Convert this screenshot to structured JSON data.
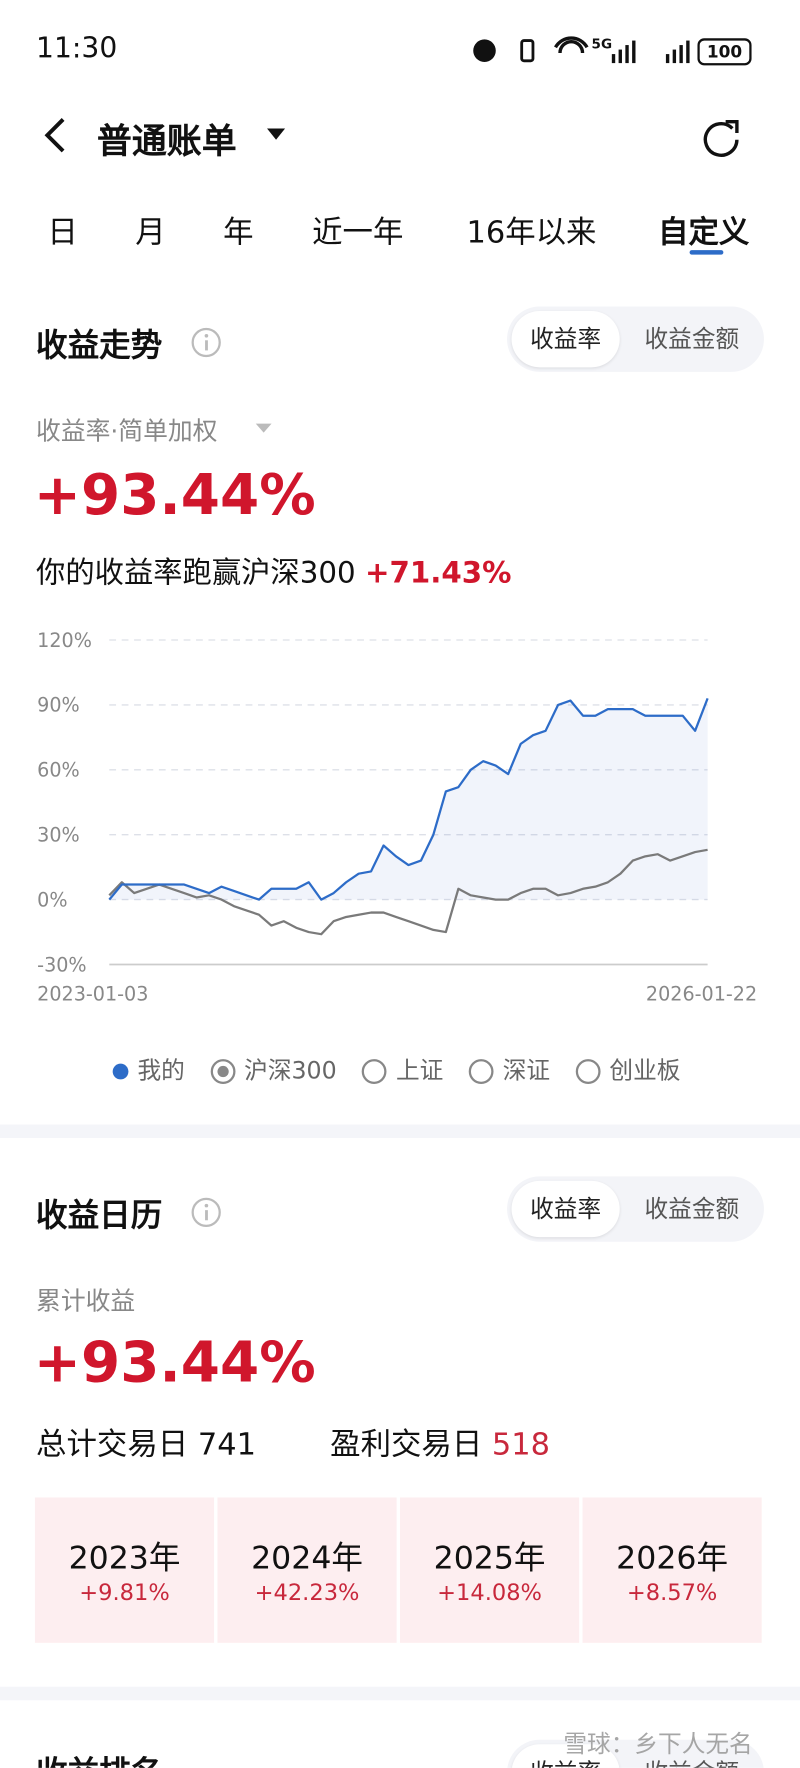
{
  "status_bar": {
    "time": "11:30",
    "network": "5G",
    "battery": "100"
  },
  "header": {
    "title": "普通账单"
  },
  "tabs": [
    "日",
    "月",
    "年",
    "近一年",
    "16年以来",
    "自定义"
  ],
  "trend": {
    "title": "收益走势",
    "toggle": [
      "收益率",
      "收益金额"
    ],
    "metric": "收益率·简单加权",
    "return": "+93.44%",
    "compare_text": "你的收益率跑赢沪深300",
    "compare_value": "+71.43%"
  },
  "chart_data": {
    "type": "line",
    "categories": [
      "2023-01-03",
      null,
      null,
      null,
      null,
      null,
      null,
      null,
      null,
      null,
      null,
      null,
      null,
      null,
      null,
      null,
      null,
      null,
      null,
      null,
      null,
      null,
      null,
      null,
      null,
      null,
      null,
      null,
      null,
      null,
      null,
      null,
      null,
      null,
      null,
      null,
      null,
      null,
      null,
      null,
      null,
      null,
      null,
      null,
      null,
      null,
      null,
      null,
      "2026-01-22"
    ],
    "series": [
      {
        "name": "我的",
        "color": "#2d6cc8",
        "values": [
          0,
          7,
          7,
          7,
          7,
          7,
          7,
          5,
          3,
          6,
          4,
          2,
          0,
          5,
          5,
          5,
          8,
          0,
          3,
          8,
          12,
          13,
          25,
          20,
          16,
          18,
          30,
          50,
          52,
          60,
          64,
          62,
          58,
          72,
          76,
          78,
          90,
          92,
          85,
          85,
          88,
          88,
          88,
          85,
          85,
          85,
          85,
          78,
          93
        ]
      },
      {
        "name": "沪深300",
        "color": "#7a7a7a",
        "values": [
          2,
          8,
          3,
          5,
          7,
          5,
          3,
          1,
          2,
          0,
          -3,
          -5,
          -7,
          -12,
          -10,
          -13,
          -15,
          -16,
          -10,
          -8,
          -7,
          -6,
          -6,
          -8,
          -10,
          -12,
          -14,
          -15,
          5,
          2,
          1,
          0,
          0,
          3,
          5,
          5,
          2,
          3,
          5,
          6,
          8,
          12,
          18,
          20,
          21,
          18,
          20,
          22,
          23
        ]
      }
    ],
    "ylim": [
      -30,
      120
    ],
    "yticks": [
      {
        "value": -30,
        "label": "-30%"
      },
      {
        "value": 0,
        "label": "0%"
      },
      {
        "value": 30,
        "label": "30%"
      },
      {
        "value": 60,
        "label": "60%"
      },
      {
        "value": 90,
        "label": "90%"
      },
      {
        "value": 120,
        "label": "120%"
      }
    ],
    "grid": true,
    "legend_options": [
      "上证",
      "深证",
      "创业板"
    ]
  },
  "calendar": {
    "title": "收益日历",
    "toggle": [
      "收益率",
      "收益金额"
    ],
    "label": "累计收益",
    "return": "+93.44%",
    "total_days_label": "总计交易日",
    "total_days": 741,
    "profit_days_label": "盈利交易日",
    "profit_days": 518,
    "years": [
      {
        "year": "2023年",
        "return": "+9.81%"
      },
      {
        "year": "2024年",
        "return": "+42.23%"
      },
      {
        "year": "2025年",
        "return": "+14.08%"
      },
      {
        "year": "2026年",
        "return": "+8.57%"
      }
    ]
  },
  "ranking": {
    "title": "收益排名",
    "toggle": [
      "收益率",
      "收益金额"
    ]
  },
  "watermark": "雪球：乡下人无名"
}
